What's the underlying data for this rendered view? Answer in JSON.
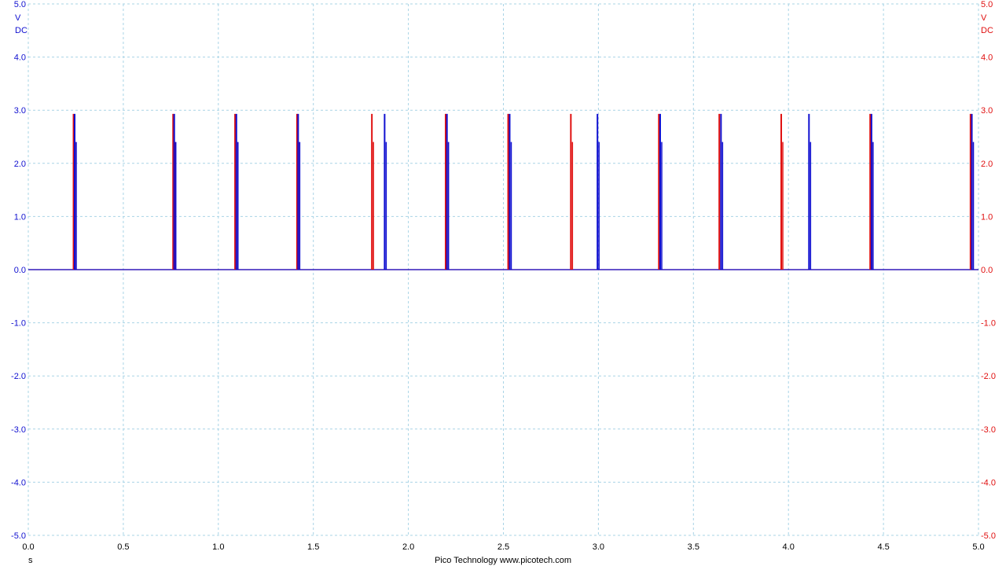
{
  "chart_data": {
    "type": "line",
    "title": "",
    "x_unit": "s",
    "xlim": [
      0.0,
      5.0
    ],
    "ylim": [
      -5.0,
      5.0
    ],
    "x_ticks": [
      "0.0",
      "0.5",
      "1.0",
      "1.5",
      "2.0",
      "2.5",
      "3.0",
      "3.5",
      "4.0",
      "4.5",
      "5.0"
    ],
    "y_ticks": [
      "5.0",
      "4.0",
      "3.0",
      "2.0",
      "1.0",
      "0.0",
      "-1.0",
      "-2.0",
      "-3.0",
      "-4.0",
      "-5.0"
    ],
    "grid": true,
    "left_axis": {
      "unit": "V",
      "coupling": "DC",
      "color": "#1010d0"
    },
    "right_axis": {
      "unit": "V",
      "coupling": "DC",
      "color": "#e01010"
    },
    "series": [
      {
        "color": "#e01010",
        "baseline": 0.0,
        "pulses": [
          {
            "x": 0.238,
            "peak": 2.93
          },
          {
            "x": 0.762,
            "peak": 2.93
          },
          {
            "x": 1.088,
            "peak": 2.93
          },
          {
            "x": 1.414,
            "peak": 2.93
          },
          {
            "x": 1.808,
            "peak": 2.93
          },
          {
            "x": 2.196,
            "peak": 2.93
          },
          {
            "x": 2.525,
            "peak": 2.93
          },
          {
            "x": 2.855,
            "peak": 2.93
          },
          {
            "x": 3.318,
            "peak": 2.93
          },
          {
            "x": 3.636,
            "peak": 2.93
          },
          {
            "x": 3.962,
            "peak": 2.93
          },
          {
            "x": 4.43,
            "peak": 2.93
          },
          {
            "x": 4.958,
            "peak": 2.93
          }
        ]
      },
      {
        "color": "#1010d0",
        "baseline": 0.0,
        "pulses": [
          {
            "x": 0.244,
            "peak": 2.93
          },
          {
            "x": 0.768,
            "peak": 2.93
          },
          {
            "x": 1.095,
            "peak": 2.93
          },
          {
            "x": 1.42,
            "peak": 2.93
          },
          {
            "x": 1.875,
            "peak": 2.93
          },
          {
            "x": 2.203,
            "peak": 2.93
          },
          {
            "x": 2.533,
            "peak": 2.93
          },
          {
            "x": 2.995,
            "peak": 2.93
          },
          {
            "x": 3.325,
            "peak": 2.93
          },
          {
            "x": 3.645,
            "peak": 2.93
          },
          {
            "x": 4.108,
            "peak": 2.93
          },
          {
            "x": 4.437,
            "peak": 2.93
          },
          {
            "x": 4.965,
            "peak": 2.93
          }
        ]
      }
    ]
  },
  "footer": {
    "text": "Pico Technology  www.picotech.com"
  }
}
